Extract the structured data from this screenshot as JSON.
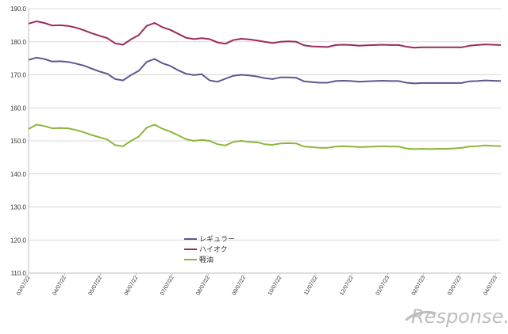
{
  "chart_data": {
    "type": "line",
    "ylim": [
      110.0,
      190.0
    ],
    "y_ticks": [
      "110.0",
      "120.0",
      "130.0",
      "140.0",
      "150.0",
      "160.0",
      "170.0",
      "180.0",
      "190.0"
    ],
    "x_tick_labels": [
      "03/07/22",
      "04/07/22",
      "05/07/22",
      "06/07/22",
      "07/07/22",
      "08/07/22",
      "09/07/22",
      "10/07/22",
      "11/07/22",
      "12/07/22",
      "01/07/23",
      "02/07/23",
      "03/07/23",
      "04/07/23"
    ],
    "grid": true,
    "legend_position": "center-bottom",
    "series": [
      {
        "name": "レギュラー",
        "color": "#5b5890",
        "values": [
          174.5,
          175.2,
          174.8,
          174.0,
          174.1,
          173.9,
          173.4,
          172.8,
          171.9,
          171.0,
          170.3,
          168.7,
          168.3,
          169.9,
          171.2,
          173.9,
          174.8,
          173.5,
          172.7,
          171.4,
          170.3,
          169.9,
          170.2,
          168.3,
          167.9,
          168.8,
          169.7,
          170.0,
          169.8,
          169.5,
          169.0,
          168.7,
          169.2,
          169.2,
          169.1,
          168.0,
          167.8,
          167.6,
          167.6,
          168.1,
          168.2,
          168.1,
          167.9,
          168.0,
          168.1,
          168.2,
          168.1,
          168.1,
          167.6,
          167.4,
          167.5,
          167.5,
          167.5,
          167.5,
          167.5,
          167.5,
          168.0,
          168.1,
          168.3,
          168.2,
          168.1
        ]
      },
      {
        "name": "ハイオク",
        "color": "#9b2a5e",
        "values": [
          185.5,
          186.2,
          185.7,
          184.9,
          185.0,
          184.8,
          184.3,
          183.5,
          182.6,
          181.8,
          181.1,
          179.5,
          179.1,
          180.7,
          182.0,
          184.8,
          185.7,
          184.4,
          183.6,
          182.4,
          181.2,
          180.8,
          181.1,
          180.8,
          179.8,
          179.4,
          180.5,
          180.9,
          180.7,
          180.4,
          180.0,
          179.6,
          180.0,
          180.1,
          180.0,
          178.9,
          178.6,
          178.5,
          178.4,
          179.0,
          179.1,
          179.0,
          178.8,
          178.9,
          179.0,
          179.1,
          179.0,
          179.0,
          178.5,
          178.2,
          178.3,
          178.3,
          178.3,
          178.3,
          178.3,
          178.3,
          178.8,
          179.0,
          179.2,
          179.1,
          179.0
        ]
      },
      {
        "name": "軽油",
        "color": "#8db63c",
        "values": [
          153.6,
          154.9,
          154.5,
          153.8,
          153.9,
          153.8,
          153.3,
          152.6,
          151.8,
          151.1,
          150.4,
          148.7,
          148.4,
          150.0,
          151.3,
          154.0,
          154.9,
          153.7,
          152.8,
          151.7,
          150.5,
          150.0,
          150.3,
          150.0,
          149.0,
          148.6,
          149.7,
          150.0,
          149.7,
          149.6,
          149.0,
          148.8,
          149.2,
          149.3,
          149.2,
          148.3,
          148.1,
          147.9,
          147.9,
          148.3,
          148.4,
          148.3,
          148.1,
          148.2,
          148.3,
          148.4,
          148.3,
          148.3,
          147.7,
          147.5,
          147.6,
          147.5,
          147.6,
          147.6,
          147.7,
          147.9,
          148.3,
          148.4,
          148.6,
          148.5,
          148.4
        ]
      }
    ]
  },
  "watermark": {
    "brand_text": "Response.",
    "style": "italic script logo"
  }
}
